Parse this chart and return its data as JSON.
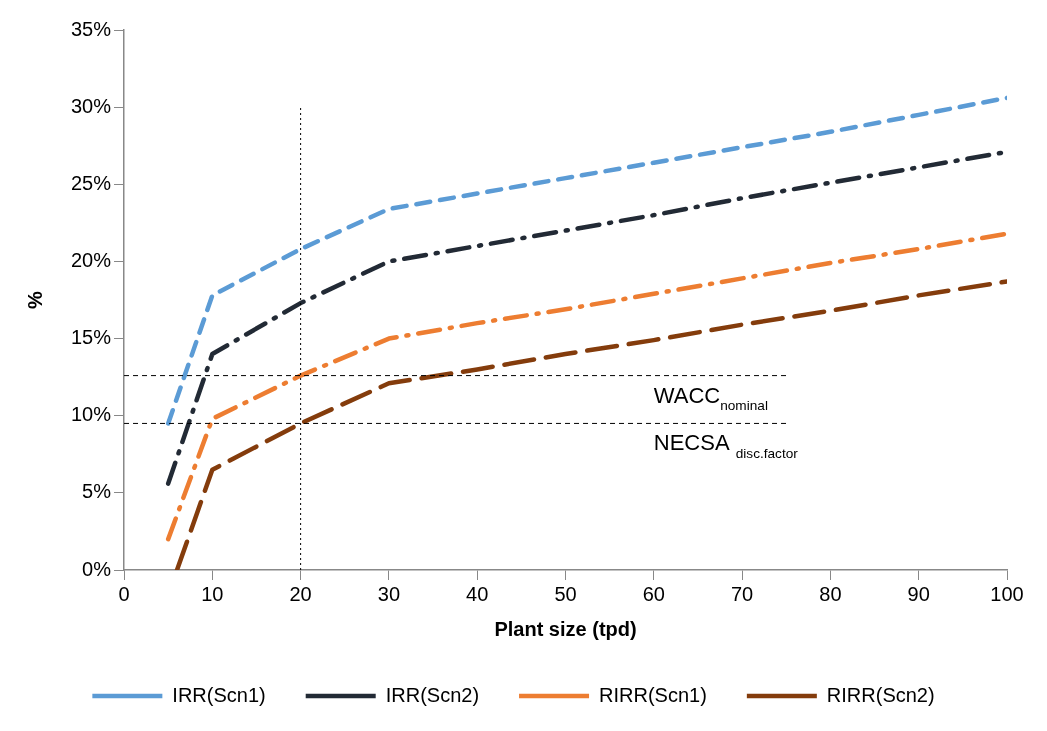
{
  "chart_data": {
    "type": "line",
    "xlabel": "Plant size (tpd)",
    "ylabel": "%",
    "xlim": [
      0,
      100
    ],
    "xticks": [
      0,
      10,
      20,
      30,
      40,
      50,
      60,
      70,
      80,
      90,
      100
    ],
    "ylim": [
      0,
      35
    ],
    "yticks": [
      {
        "value": 0,
        "label": "0%"
      },
      {
        "value": 5,
        "label": "5%"
      },
      {
        "value": 10,
        "label": "10%"
      },
      {
        "value": 15,
        "label": "15%"
      },
      {
        "value": 20,
        "label": "20%"
      },
      {
        "value": 25,
        "label": "25%"
      },
      {
        "value": 30,
        "label": "30%"
      },
      {
        "value": 35,
        "label": "35%"
      }
    ],
    "grid": false,
    "legend": "bottom",
    "marker": "none",
    "series": [
      {
        "name": "IRR(Scn1)",
        "color": "#5b9bd5",
        "line_style": "dashed",
        "x": [
          5,
          10,
          20,
          30,
          40,
          50,
          60,
          70,
          80,
          90,
          100
        ],
        "values": [
          9.5,
          17.8,
          20.8,
          23.4,
          24.4,
          25.4,
          26.4,
          27.4,
          28.4,
          29.5,
          30.6
        ]
      },
      {
        "name": "IRR(Scn2)",
        "color": "#222a35",
        "line_style": "dashdot",
        "x": [
          5,
          10,
          20,
          30,
          40,
          50,
          60,
          70,
          80,
          90,
          100
        ],
        "values": [
          5.6,
          14.0,
          17.3,
          20.0,
          21.0,
          22.0,
          23.0,
          24.1,
          25.1,
          26.1,
          27.1
        ]
      },
      {
        "name": "RIRR(Scn1)",
        "color": "#ed7d31",
        "line_style": "dashdot",
        "x": [
          5,
          10,
          20,
          30,
          40,
          50,
          60,
          70,
          80,
          90,
          100
        ],
        "values": [
          2.0,
          9.8,
          12.6,
          15.0,
          16.0,
          16.9,
          17.9,
          18.9,
          19.9,
          20.8,
          21.8
        ]
      },
      {
        "name": "RIRR(Scn2)",
        "color": "#843c0c",
        "line_style": "longdash",
        "x": [
          6,
          10,
          20,
          30,
          40,
          50,
          60,
          70,
          80,
          90,
          100
        ],
        "values": [
          0,
          6.5,
          9.5,
          12.1,
          13.0,
          14.0,
          14.9,
          15.9,
          16.8,
          17.8,
          18.7
        ]
      }
    ],
    "ref_lines": [
      {
        "axis": "y",
        "value": 12.6,
        "label": "WACC$_{nominal}$",
        "line_style": "dashed",
        "color": "#000000"
      },
      {
        "axis": "y",
        "value": 9.5,
        "label": "NECSA $_{disc.factor}$",
        "line_style": "dashed",
        "color": "#000000"
      },
      {
        "axis": "x",
        "value": 20,
        "line_style": "dotted",
        "color": "#000000"
      }
    ]
  }
}
